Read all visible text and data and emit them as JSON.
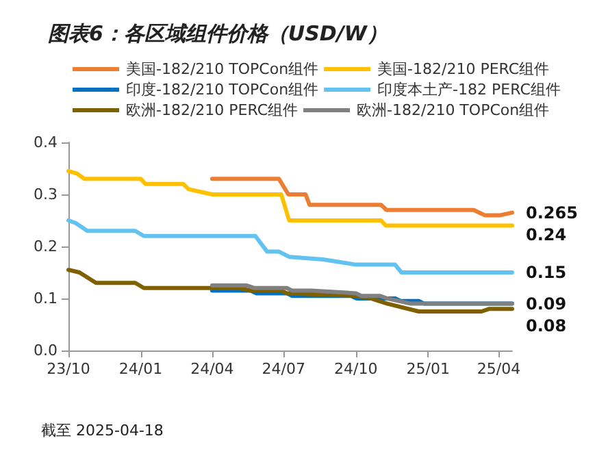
{
  "chart_data": {
    "type": "line",
    "title": "图表6：各区域组件价格（USD/W）",
    "xlim": [
      "2023-10-01",
      "2025-04-18"
    ],
    "xticks": [
      {
        "value": "2023-10-01",
        "label": "23/10"
      },
      {
        "value": "2024-01-01",
        "label": "24/01"
      },
      {
        "value": "2024-04-01",
        "label": "24/04"
      },
      {
        "value": "2024-07-01",
        "label": "24/07"
      },
      {
        "value": "2024-10-01",
        "label": "24/10"
      },
      {
        "value": "2025-01-01",
        "label": "25/01"
      },
      {
        "value": "2025-04-01",
        "label": "25/04"
      }
    ],
    "ylim": [
      0,
      0.4
    ],
    "yticks": [
      {
        "value": 0,
        "label": "0.0"
      },
      0.1,
      0.2,
      0.3,
      0.4
    ],
    "grid": false,
    "legend": "top",
    "marker": "none",
    "line_style": "solid",
    "series": [
      {
        "name": "美国-182/210 TOPCon组件",
        "color": "#ed7d31",
        "x": [
          "2024-04-01",
          "2024-06-25",
          "2024-07-07",
          "2024-07-29",
          "2024-08-03",
          "2024-11-02",
          "2024-11-09",
          "2025-02-28",
          "2025-03-14",
          "2025-04-03",
          "2025-04-18"
        ],
        "values": [
          0.33,
          0.33,
          0.3,
          0.3,
          0.28,
          0.28,
          0.27,
          0.27,
          0.26,
          0.26,
          0.265
        ]
      },
      {
        "name": "美国-182/210 PERC组件",
        "color": "#ffc000",
        "x": [
          "2023-10-01",
          "2023-10-12",
          "2023-10-21",
          "2024-01-01",
          "2024-01-07",
          "2024-02-24",
          "2024-03-02",
          "2024-04-01",
          "2024-06-28",
          "2024-07-08",
          "2024-11-02",
          "2024-11-08",
          "2025-04-18"
        ],
        "values": [
          0.345,
          0.34,
          0.33,
          0.33,
          0.32,
          0.32,
          0.31,
          0.3,
          0.3,
          0.25,
          0.25,
          0.24,
          0.24
        ]
      },
      {
        "name": "印度-182/210 TOPCon组件",
        "color": "#0070c0",
        "x": [
          "2024-04-01",
          "2024-05-20",
          "2024-05-27",
          "2024-07-05",
          "2024-07-12",
          "2024-09-25",
          "2024-10-02",
          "2024-11-20",
          "2024-11-27",
          "2024-12-20",
          "2024-12-27",
          "2025-04-18"
        ],
        "values": [
          0.115,
          0.115,
          0.11,
          0.11,
          0.105,
          0.105,
          0.1,
          0.1,
          0.095,
          0.095,
          0.09,
          0.09
        ]
      },
      {
        "name": "印度本土产-182 PERC组件",
        "color": "#62c3f0",
        "x": [
          "2023-10-01",
          "2023-10-10",
          "2023-10-25",
          "2023-12-25",
          "2024-01-05",
          "2024-05-26",
          "2024-06-10",
          "2024-06-25",
          "2024-07-08",
          "2024-08-20",
          "2024-09-10",
          "2024-10-01",
          "2024-11-20",
          "2024-11-28",
          "2025-04-18"
        ],
        "values": [
          0.25,
          0.245,
          0.23,
          0.23,
          0.22,
          0.22,
          0.19,
          0.19,
          0.18,
          0.175,
          0.17,
          0.165,
          0.165,
          0.15,
          0.15
        ]
      },
      {
        "name": "欧洲-182/210 PERC组件",
        "color": "#7f6000",
        "x": [
          "2023-10-01",
          "2023-10-15",
          "2023-11-05",
          "2023-12-25",
          "2024-01-05",
          "2024-05-05",
          "2024-05-20",
          "2024-06-28",
          "2024-07-05",
          "2024-10-01",
          "2024-10-20",
          "2024-11-10",
          "2024-12-20",
          "2025-03-10",
          "2025-03-20",
          "2025-04-18"
        ],
        "values": [
          0.155,
          0.15,
          0.13,
          0.13,
          0.12,
          0.12,
          0.115,
          0.115,
          0.11,
          0.105,
          0.1,
          0.09,
          0.075,
          0.075,
          0.08,
          0.08
        ]
      },
      {
        "name": "欧洲-182/210 TOPCon组件",
        "color": "#808080",
        "x": [
          "2024-04-01",
          "2024-05-15",
          "2024-05-25",
          "2024-07-05",
          "2024-07-12",
          "2024-08-05",
          "2024-10-01",
          "2024-10-08",
          "2024-11-01",
          "2024-11-10",
          "2024-12-10",
          "2025-04-18"
        ],
        "values": [
          0.125,
          0.125,
          0.12,
          0.12,
          0.115,
          0.115,
          0.11,
          0.105,
          0.105,
          0.1,
          0.09,
          0.09
        ]
      }
    ],
    "annotations": [
      {
        "text": "0.265",
        "x": "2025-04-18",
        "y": 0.265
      },
      {
        "text": "0.24",
        "x": "2025-04-18",
        "y": 0.24
      },
      {
        "text": "0.15",
        "x": "2025-04-18",
        "y": 0.15
      },
      {
        "text": "0.09",
        "x": "2025-04-18",
        "y": 0.09
      },
      {
        "text": "0.08",
        "x": "2025-04-18",
        "y": 0.08
      },
      "截至 2025-04-18"
    ]
  }
}
